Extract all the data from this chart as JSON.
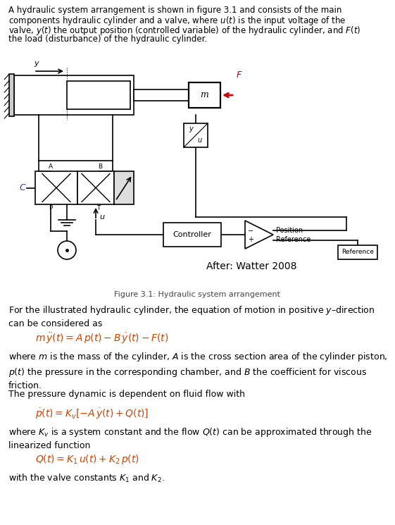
{
  "bg_color": "#ffffff",
  "text_color": "#000000",
  "blue_color": "#3333cc",
  "red_color": "#cc0000",
  "orange_color": "#cc4400",
  "fig_width": 5.61,
  "fig_height": 7.45,
  "figure_caption": "Figure 3.1: Hydraulic system arrangement",
  "para1": "For the illustrated hydraulic cylinder, the equation of motion in positive $y$–direction\ncan be considered as",
  "eq1": "$m\\,\\ddot{y}(t) = A\\,p(t) - B\\,\\dot{y}(t) - F(t)$",
  "para2": "where $m$ is the mass of the cylinder, $A$ is the cross section area of the cylinder piston,\n$p(t)$ the pressure in the corresponding chamber, and $B$ the coefficient for viscous\nfriction.",
  "para3": "The pressure dynamic is dependent on fluid flow with",
  "eq2": "$\\dot{p}(t) = K_v[-A\\,\\dot{y}(t) + Q(t)]$",
  "para4": "where $K_v$ is a system constant and the flow $Q(t)$ can be approximated through the\nlinearized function",
  "eq3": "$Q(t) = K_1\\,u(t) + K_2\\,p(t)$",
  "para5": "with the valve constants $K_1$ and $K_2$.",
  "intro_lines": [
    "A hydraulic system arrangement is shown in figure 3.1 and consists of the main",
    "components hydraulic cylinder and a valve, where $u(t)$ is the input voltage of the",
    "valve, $y(t)$ the output position (controlled variable) of the hydraulic cylinder, and $F(t)$",
    "the load (disturbance) of the hydraulic cylinder."
  ]
}
